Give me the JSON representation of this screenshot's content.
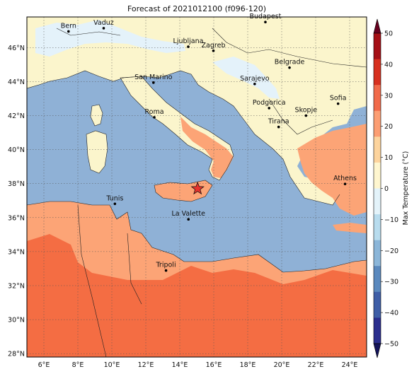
{
  "title": "Forecast of 2021012100 (f096-120)",
  "colorbar": {
    "label": "Max Temperature (°C)",
    "ticks": [
      "50",
      "40",
      "30",
      "20",
      "10",
      "0",
      "−10",
      "−20",
      "−30",
      "−40",
      "−50"
    ],
    "colors": [
      "#67001f",
      "#a50f15",
      "#d7301f",
      "#f16a4a",
      "#fc9e73",
      "#fdd49e",
      "#fff6cf",
      "#e4f3fa",
      "#b8dcee",
      "#8bb6d9",
      "#5a89be",
      "#3e5ea7",
      "#2b2e8e",
      "#14145a"
    ]
  },
  "lon_labels": [
    "6°E",
    "8°E",
    "10°E",
    "12°E",
    "14°E",
    "16°E",
    "18°E",
    "20°E",
    "22°E",
    "24°E"
  ],
  "lat_labels": [
    "46°N",
    "44°N",
    "42°N",
    "40°N",
    "38°N",
    "36°N",
    "34°N",
    "32°N",
    "30°N",
    "28°N"
  ],
  "cities": [
    {
      "name": "Bern"
    },
    {
      "name": "Vaduz"
    },
    {
      "name": "Budapest"
    },
    {
      "name": "Ljubljana"
    },
    {
      "name": "Zagreb"
    },
    {
      "name": "Belgrade"
    },
    {
      "name": "San Marino"
    },
    {
      "name": "Sarajevo"
    },
    {
      "name": "Sofia"
    },
    {
      "name": "Podgorica"
    },
    {
      "name": "Skopje"
    },
    {
      "name": "Roma"
    },
    {
      "name": "Tirana"
    },
    {
      "name": "Athens"
    },
    {
      "name": "Tunis"
    },
    {
      "name": "La Valette"
    },
    {
      "name": "Tripoli"
    }
  ],
  "colors": {
    "sea": "#8fb1d6",
    "cold_land": "#fbf5cc",
    "mild": "#fca476",
    "warm": "#f46d43",
    "snow": "#e4f2fa",
    "marker": "#e8332d"
  }
}
